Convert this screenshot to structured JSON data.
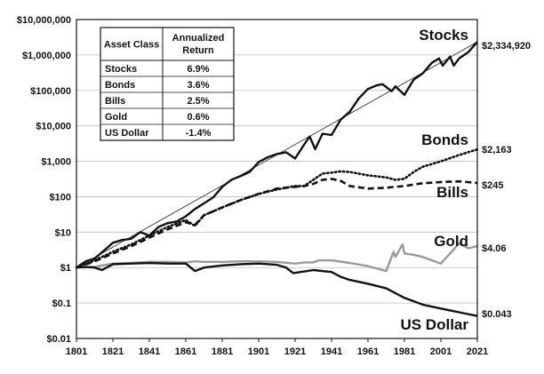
{
  "chart_data": {
    "type": "line",
    "y_scale": "log",
    "ylim": [
      0.01,
      10000000
    ],
    "xlim": [
      1801,
      2021
    ],
    "y_tick_values": [
      0.01,
      0.1,
      1,
      10,
      100,
      1000,
      10000,
      100000,
      1000000,
      10000000
    ],
    "y_tick_labels": [
      "$0.01",
      "$0.1",
      "$1",
      "$10",
      "$100",
      "$1,000",
      "$10,000",
      "$100,000",
      "$1,000,000",
      "$10,000,000"
    ],
    "x_tick_values": [
      1801,
      1821,
      1841,
      1861,
      1881,
      1901,
      1921,
      1941,
      1961,
      1981,
      2001,
      2021
    ],
    "x_tick_labels": [
      "1801",
      "1821",
      "1841",
      "1861",
      "1881",
      "1901",
      "1921",
      "1941",
      "1961",
      "1981",
      "2001",
      "2021"
    ],
    "grid": "horizontal",
    "trend_line": {
      "x": [
        1801,
        2021
      ],
      "y": [
        1,
        2334920
      ]
    },
    "series": [
      {
        "name": "Stocks",
        "color": "#111111",
        "style": "solid-thick",
        "end_label": "$2,334,920",
        "x": [
          1801,
          1806,
          1811,
          1816,
          1821,
          1826,
          1831,
          1836,
          1841,
          1846,
          1851,
          1856,
          1861,
          1866,
          1871,
          1876,
          1881,
          1886,
          1891,
          1896,
          1901,
          1906,
          1911,
          1916,
          1921,
          1926,
          1929,
          1932,
          1936,
          1941,
          1946,
          1951,
          1956,
          1961,
          1966,
          1969,
          1974,
          1976,
          1981,
          1986,
          1991,
          1996,
          2000,
          2002,
          2006,
          2008,
          2011,
          2016,
          2021
        ],
        "y": [
          1,
          1.5,
          1.8,
          3,
          5,
          6,
          6.5,
          10,
          8,
          14,
          18,
          20,
          28,
          45,
          65,
          95,
          190,
          300,
          380,
          500,
          950,
          1300,
          1600,
          1800,
          1200,
          3000,
          5000,
          2200,
          6000,
          5500,
          15000,
          25000,
          60000,
          110000,
          140000,
          150000,
          95000,
          130000,
          75000,
          200000,
          300000,
          600000,
          800000,
          500000,
          900000,
          500000,
          800000,
          1200000,
          2334920
        ]
      },
      {
        "name": "Bonds",
        "color": "#111111",
        "style": "dotted",
        "end_label": "$2,163",
        "x": [
          1801,
          1811,
          1821,
          1831,
          1841,
          1851,
          1861,
          1866,
          1871,
          1881,
          1891,
          1901,
          1911,
          1921,
          1926,
          1931,
          1936,
          1941,
          1946,
          1951,
          1961,
          1971,
          1976,
          1981,
          1986,
          1991,
          2001,
          2011,
          2021
        ],
        "y": [
          1,
          1.6,
          2.8,
          4.5,
          8,
          14,
          22,
          15,
          30,
          50,
          80,
          120,
          160,
          200,
          200,
          300,
          450,
          480,
          520,
          500,
          400,
          350,
          300,
          320,
          500,
          700,
          1000,
          1500,
          2163
        ]
      },
      {
        "name": "Bills",
        "color": "#111111",
        "style": "dashed",
        "end_label": "$245",
        "x": [
          1801,
          1811,
          1821,
          1831,
          1841,
          1851,
          1861,
          1866,
          1871,
          1881,
          1891,
          1901,
          1911,
          1921,
          1926,
          1931,
          1936,
          1941,
          1946,
          1951,
          1961,
          1971,
          1976,
          1981,
          1986,
          1991,
          2001,
          2011,
          2021
        ],
        "y": [
          1,
          1.5,
          2.5,
          4,
          7,
          12,
          19,
          16,
          30,
          50,
          80,
          120,
          170,
          190,
          200,
          230,
          300,
          320,
          280,
          200,
          170,
          180,
          190,
          200,
          220,
          240,
          260,
          270,
          245
        ]
      },
      {
        "name": "Gold",
        "color": "#999999",
        "style": "solid",
        "end_label": "$4.06",
        "x": [
          1801,
          1811,
          1821,
          1831,
          1841,
          1851,
          1861,
          1866,
          1871,
          1881,
          1891,
          1901,
          1911,
          1921,
          1926,
          1931,
          1934,
          1941,
          1951,
          1961,
          1971,
          1975,
          1976,
          1980,
          1981,
          1986,
          1991,
          2001,
          2006,
          2011,
          2016,
          2021
        ],
        "y": [
          1,
          1.05,
          1.3,
          1.35,
          1.45,
          1.45,
          1.4,
          1.5,
          1.45,
          1.45,
          1.5,
          1.5,
          1.45,
          1.3,
          1.4,
          1.4,
          1.6,
          1.6,
          1.35,
          1.1,
          0.8,
          2.8,
          2.0,
          4.5,
          2.5,
          2.3,
          2.0,
          1.3,
          2.5,
          4.8,
          3.5,
          4.06
        ]
      },
      {
        "name": "US Dollar",
        "color": "#111111",
        "style": "solid-thick",
        "end_label": "$0.043",
        "x": [
          1801,
          1806,
          1811,
          1815,
          1821,
          1831,
          1841,
          1851,
          1861,
          1866,
          1871,
          1881,
          1891,
          1901,
          1911,
          1916,
          1920,
          1924,
          1931,
          1941,
          1946,
          1951,
          1961,
          1971,
          1981,
          1991,
          2001,
          2011,
          2021
        ],
        "y": [
          1,
          1.05,
          1.0,
          0.85,
          1.25,
          1.3,
          1.35,
          1.3,
          1.3,
          0.8,
          1.0,
          1.15,
          1.25,
          1.3,
          1.2,
          1.0,
          0.7,
          0.75,
          0.85,
          0.75,
          0.55,
          0.45,
          0.35,
          0.26,
          0.14,
          0.09,
          0.07,
          0.055,
          0.043
        ]
      }
    ],
    "table": {
      "headers": [
        "Asset Class",
        "Annualized Return"
      ],
      "rows": [
        [
          "Stocks",
          "6.9%"
        ],
        [
          "Bonds",
          "3.6%"
        ],
        [
          "Bills",
          "2.5%"
        ],
        [
          "Gold",
          "0.6%"
        ],
        [
          "US Dollar",
          "-1.4%"
        ]
      ]
    }
  }
}
